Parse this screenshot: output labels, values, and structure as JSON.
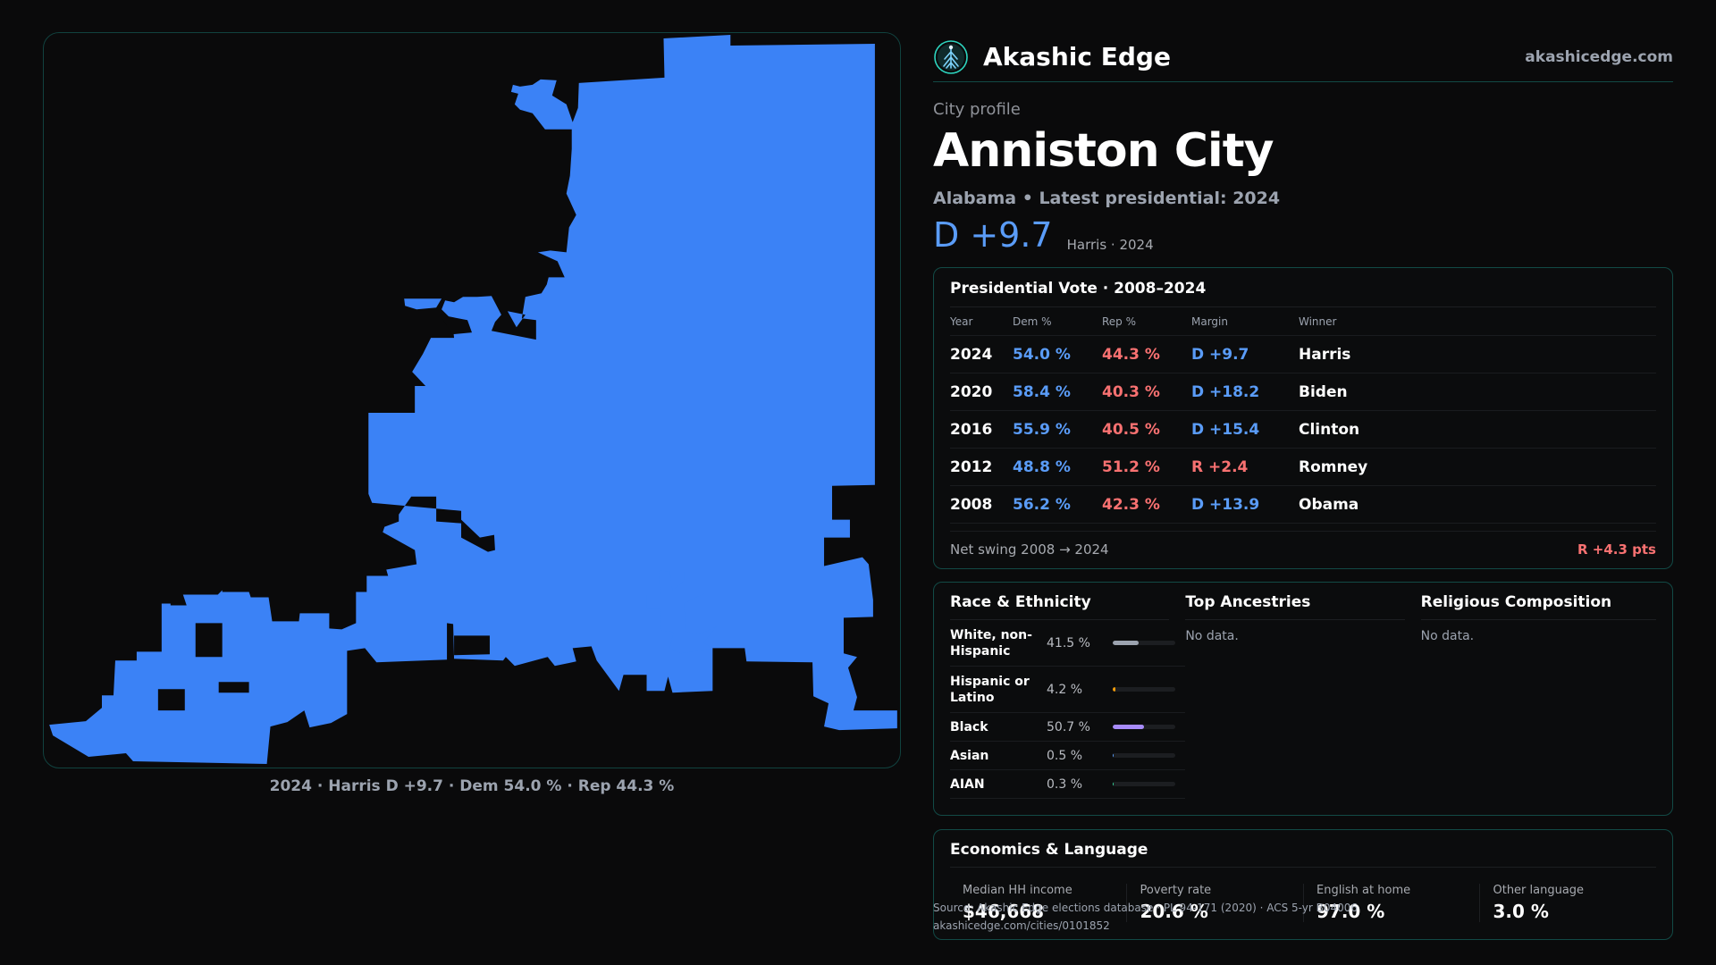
{
  "brand": {
    "name": "Akashic Edge",
    "url": "akashicedge.com",
    "logo_icon": "tree-of-life-icon"
  },
  "profile": {
    "eyebrow": "City profile",
    "title": "Anniston City",
    "subline": "Alabama • Latest presidential: 2024",
    "margin": "D +9.7",
    "margin_note": "Harris · 2024"
  },
  "map": {
    "caption": "2024 · Harris D +9.7 · Dem 54.0 % · Rep 44.3 %",
    "fill_color": "#3b82f6"
  },
  "vote": {
    "title": "Presidential Vote · 2008–2024",
    "headers": {
      "year": "Year",
      "dem": "Dem %",
      "rep": "Rep %",
      "margin": "Margin",
      "winner": "Winner"
    },
    "rows": [
      {
        "year": "2024",
        "dem": "54.0 %",
        "rep": "44.3 %",
        "margin": "D +9.7",
        "party": "D",
        "winner": "Harris"
      },
      {
        "year": "2020",
        "dem": "58.4 %",
        "rep": "40.3 %",
        "margin": "D +18.2",
        "party": "D",
        "winner": "Biden"
      },
      {
        "year": "2016",
        "dem": "55.9 %",
        "rep": "40.5 %",
        "margin": "D +15.4",
        "party": "D",
        "winner": "Clinton"
      },
      {
        "year": "2012",
        "dem": "48.8 %",
        "rep": "51.2 %",
        "margin": "R +2.4",
        "party": "R",
        "winner": "Romney"
      },
      {
        "year": "2008",
        "dem": "56.2 %",
        "rep": "42.3 %",
        "margin": "D +13.9",
        "party": "D",
        "winner": "Obama"
      }
    ],
    "net_swing_label": "Net swing 2008 → 2024",
    "net_swing_value": "R +4.3 pts"
  },
  "race": {
    "title": "Race & Ethnicity",
    "rows": [
      {
        "label": "White, non-Hispanic",
        "pct": "41.5 %",
        "value": 41.5,
        "color": "#9ca3af"
      },
      {
        "label": "Hispanic or Latino",
        "pct": "4.2 %",
        "value": 4.2,
        "color": "#f59e0b"
      },
      {
        "label": "Black",
        "pct": "50.7 %",
        "value": 50.7,
        "color": "#a78bfa"
      },
      {
        "label": "Asian",
        "pct": "0.5 %",
        "value": 0.5,
        "color": "#5a9cf8"
      },
      {
        "label": "AIAN",
        "pct": "0.3 %",
        "value": 0.3,
        "color": "#34d399"
      }
    ]
  },
  "ancestries": {
    "title": "Top Ancestries",
    "empty": "No data."
  },
  "religion": {
    "title": "Religious Composition",
    "empty": "No data."
  },
  "econ": {
    "title": "Economics & Language",
    "stats": [
      {
        "label": "Median HH income",
        "value": "$46,668"
      },
      {
        "label": "Poverty rate",
        "value": "20.6 %"
      },
      {
        "label": "English at home",
        "value": "97.0 %"
      },
      {
        "label": "Other language",
        "value": "3.0 %"
      }
    ]
  },
  "source": {
    "line1": "Source: Akashic Edge elections database · PL 94-171 (2020) · ACS 5-yr B04006",
    "line2": "akashicedge.com/cities/0101852"
  }
}
